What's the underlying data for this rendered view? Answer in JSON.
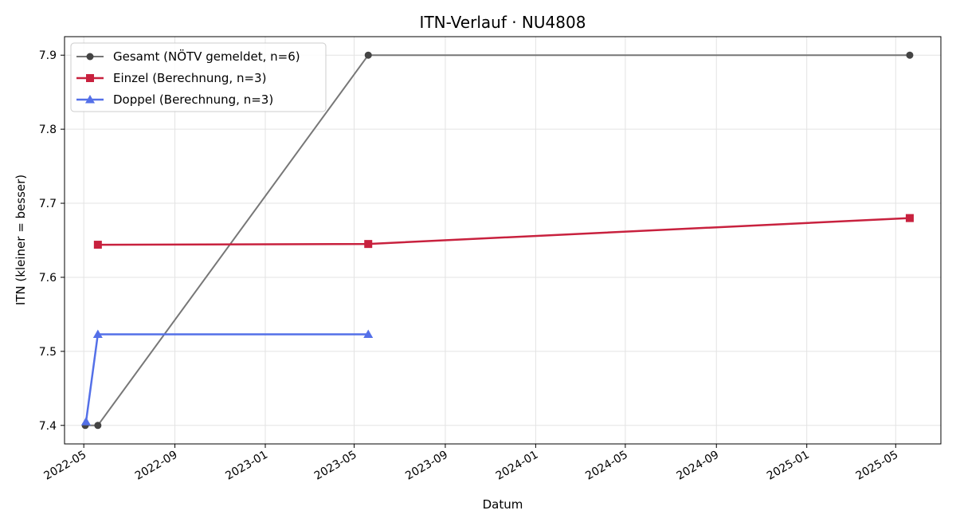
{
  "chart_data": {
    "type": "line",
    "title": "ITN-Verlauf · NU4808",
    "xlabel": "Datum",
    "ylabel": "ITN  (kleiner = besser)",
    "x_axis_type": "date",
    "xlim": [
      "2022-04-05",
      "2025-07-01"
    ],
    "ylim": [
      7.375,
      7.925
    ],
    "x_ticks": [
      "2022-05-01",
      "2022-09-01",
      "2023-01-01",
      "2023-05-01",
      "2023-09-01",
      "2024-01-01",
      "2024-05-01",
      "2024-09-01",
      "2025-01-01",
      "2025-05-01"
    ],
    "x_tick_labels": [
      "2022-05",
      "2022-09",
      "2023-01",
      "2023-05",
      "2023-09",
      "2024-01",
      "2024-05",
      "2024-09",
      "2025-01",
      "2025-05"
    ],
    "y_ticks": [
      7.4,
      7.5,
      7.6,
      7.7,
      7.8,
      7.9
    ],
    "y_tick_labels": [
      "7.4",
      "7.5",
      "7.6",
      "7.7",
      "7.8",
      "7.9"
    ],
    "grid": true,
    "legend_position": "top-left",
    "series": [
      {
        "name": "Gesamt (NÖTV gemeldet, n=6)",
        "color": "#777777",
        "marker": "circle",
        "points": [
          {
            "x": "2022-05-03",
            "y": 7.4
          },
          {
            "x": "2022-05-20",
            "y": 7.4
          },
          {
            "x": "2023-05-20",
            "y": 7.9
          },
          {
            "x": "2025-05-20",
            "y": 7.9
          }
        ]
      },
      {
        "name": "Einzel (Berechnung, n=3)",
        "color": "#c8213e",
        "marker": "square",
        "points": [
          {
            "x": "2022-05-20",
            "y": 7.644
          },
          {
            "x": "2023-05-20",
            "y": 7.645
          },
          {
            "x": "2025-05-20",
            "y": 7.68
          }
        ]
      },
      {
        "name": "Doppel (Berechnung, n=3)",
        "color": "#5470e8",
        "marker": "triangle",
        "points": [
          {
            "x": "2022-05-04",
            "y": 7.405
          },
          {
            "x": "2022-05-20",
            "y": 7.523
          },
          {
            "x": "2023-05-20",
            "y": 7.523
          }
        ]
      }
    ]
  }
}
